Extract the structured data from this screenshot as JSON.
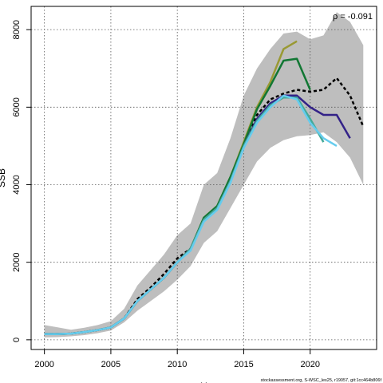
{
  "chart_data": {
    "type": "line",
    "title": "",
    "xlabel": "Y",
    "ylabel": "SSB",
    "xlim": [
      1999,
      2025
    ],
    "ylim": [
      -250,
      8600
    ],
    "x_ticks": [
      2000,
      2005,
      2010,
      2015,
      2020
    ],
    "y_ticks": [
      0,
      2000,
      4000,
      6000,
      8000
    ],
    "grid": true,
    "annotation": "ρ = -0.091",
    "caption": "stockassessment.org, S-WSC_les25, r19057, git:1cc464b806f",
    "band": {
      "x": [
        2000,
        2001,
        2002,
        2003,
        2004,
        2005,
        2006,
        2007,
        2008,
        2009,
        2010,
        2011,
        2012,
        2013,
        2014,
        2015,
        2016,
        2017,
        2018,
        2019,
        2020,
        2021,
        2022,
        2023,
        2024
      ],
      "upper": [
        380,
        320,
        260,
        310,
        380,
        480,
        800,
        1400,
        1800,
        2200,
        2700,
        3000,
        4000,
        4300,
        5200,
        6300,
        7000,
        7500,
        7900,
        7950,
        7750,
        7850,
        8450,
        8200,
        7600
      ],
      "lower": [
        60,
        70,
        90,
        120,
        170,
        240,
        450,
        750,
        1000,
        1250,
        1550,
        1900,
        2500,
        2800,
        3400,
        4000,
        4600,
        4950,
        5150,
        5250,
        5280,
        5350,
        5100,
        4700,
        4000
      ]
    },
    "series": [
      {
        "color": "#000000",
        "dashed": true,
        "x": [
          2000,
          2001,
          2002,
          2003,
          2004,
          2005,
          2006,
          2007,
          2008,
          2009,
          2010,
          2011,
          2012,
          2013,
          2014,
          2015,
          2016,
          2017,
          2018,
          2019,
          2020,
          2021,
          2022,
          2023,
          2024
        ],
        "values": [
          150,
          150,
          160,
          200,
          250,
          320,
          550,
          1050,
          1350,
          1700,
          2100,
          2350,
          3100,
          3400,
          4100,
          5000,
          5800,
          6200,
          6350,
          6450,
          6400,
          6450,
          6750,
          6300,
          5500
        ]
      },
      {
        "color": "#999933",
        "dashed": false,
        "x": [
          2000,
          2001,
          2002,
          2003,
          2004,
          2005,
          2006,
          2007,
          2008,
          2009,
          2010,
          2011,
          2012,
          2013,
          2014,
          2015,
          2016,
          2017,
          2018,
          2019
        ],
        "values": [
          150,
          150,
          160,
          200,
          250,
          320,
          550,
          1000,
          1300,
          1600,
          2000,
          2350,
          3150,
          3450,
          4200,
          5100,
          6000,
          6650,
          7500,
          7700
        ]
      },
      {
        "color": "#117733",
        "dashed": false,
        "x": [
          2000,
          2001,
          2002,
          2003,
          2004,
          2005,
          2006,
          2007,
          2008,
          2009,
          2010,
          2011,
          2012,
          2013,
          2014,
          2015,
          2016,
          2017,
          2018,
          2019,
          2020
        ],
        "values": [
          150,
          150,
          160,
          200,
          250,
          320,
          550,
          1000,
          1300,
          1600,
          2000,
          2350,
          3150,
          3450,
          4200,
          5050,
          5950,
          6550,
          7200,
          7250,
          6450
        ]
      },
      {
        "color": "#332288",
        "dashed": false,
        "x": [
          2000,
          2001,
          2002,
          2003,
          2004,
          2005,
          2006,
          2007,
          2008,
          2009,
          2010,
          2011,
          2012,
          2013,
          2014,
          2015,
          2016,
          2017,
          2018,
          2019,
          2020,
          2021,
          2022,
          2023
        ],
        "values": [
          150,
          150,
          160,
          200,
          250,
          320,
          550,
          1000,
          1300,
          1600,
          2000,
          2350,
          3100,
          3400,
          4100,
          5000,
          5700,
          6100,
          6300,
          6300,
          6000,
          5800,
          5800,
          5200
        ]
      },
      {
        "color": "#44AA99",
        "dashed": false,
        "x": [
          2000,
          2001,
          2002,
          2003,
          2004,
          2005,
          2006,
          2007,
          2008,
          2009,
          2010,
          2011,
          2012,
          2013,
          2014,
          2015,
          2016,
          2017,
          2018,
          2019,
          2020,
          2021
        ],
        "values": [
          150,
          150,
          160,
          200,
          250,
          320,
          550,
          1000,
          1300,
          1600,
          2000,
          2350,
          3100,
          3400,
          4100,
          5000,
          5650,
          6050,
          6250,
          6250,
          5700,
          5100
        ]
      },
      {
        "color": "#66CCEE",
        "dashed": false,
        "x": [
          2000,
          2001,
          2002,
          2003,
          2004,
          2005,
          2006,
          2007,
          2008,
          2009,
          2010,
          2011,
          2012,
          2013,
          2014,
          2015,
          2016,
          2017,
          2018,
          2019,
          2020,
          2021,
          2022
        ],
        "values": [
          150,
          150,
          160,
          200,
          250,
          320,
          550,
          1000,
          1300,
          1600,
          2000,
          2300,
          3050,
          3350,
          4050,
          4950,
          5600,
          6000,
          6300,
          6200,
          5600,
          5200,
          5000
        ]
      }
    ]
  }
}
